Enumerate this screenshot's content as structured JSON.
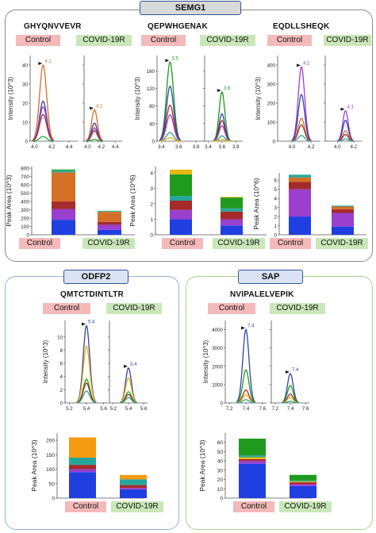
{
  "header": {
    "semg1": "SEMG1",
    "odfp2": "ODFP2",
    "sap": "SAP"
  },
  "condition_labels": {
    "control": "Control",
    "covid": "COVID-19R"
  },
  "colors": {
    "panel_semg": "#8c8c8c",
    "panel_odfp": "#8fb4da",
    "panel_sap": "#a9d18e",
    "control_bg": "#f4b9b9",
    "covid_bg": "#c9e7b8"
  },
  "chart_data": [
    {
      "id": "semg-ghy",
      "type": "line",
      "peptide": "GHYQNVVEVR",
      "ylabel": "Intensity (10^3)",
      "yticks": [
        "0",
        "10",
        "20",
        "30",
        "40"
      ],
      "ylim": [
        0,
        45
      ],
      "xticks": [
        "4.0",
        "4.2",
        "4.4"
      ],
      "xlim": [
        3.95,
        4.5
      ],
      "control": {
        "retention_time": "4.1",
        "peaks": [
          {
            "color": "#d46f28",
            "height": 40
          },
          {
            "color": "#3043a8",
            "height": 21
          },
          {
            "color": "#9b3fcf",
            "height": 18
          },
          {
            "color": "#a52a2a",
            "height": 14
          },
          {
            "color": "#2aa040",
            "height": 2.5
          }
        ]
      },
      "covid": {
        "retention_time": "4.1",
        "peaks": [
          {
            "color": "#d46f28",
            "height": 16.5
          },
          {
            "color": "#3043a8",
            "height": 9.5
          },
          {
            "color": "#9b3fcf",
            "height": 7
          },
          {
            "color": "#a52a2a",
            "height": 5.5
          },
          {
            "color": "#2aa040",
            "height": 1
          }
        ]
      }
    },
    {
      "id": "semg-qep",
      "type": "line",
      "peptide": "QEPWHGENAK",
      "ylabel": "Intensity (10^3)",
      "yticks": [
        "0",
        "40",
        "80",
        "120",
        "160"
      ],
      "ylim": [
        0,
        195
      ],
      "xticks": [
        "3.4",
        "3.6",
        "3.8"
      ],
      "xlim": [
        3.35,
        3.9
      ],
      "control": {
        "retention_time": "3.5",
        "peaks": [
          {
            "color": "#1f9a1f",
            "height": 180
          },
          {
            "color": "#3043a8",
            "height": 125
          },
          {
            "color": "#a52a2a",
            "height": 82
          },
          {
            "color": "#9b3fcf",
            "height": 60
          },
          {
            "color": "#26a69a",
            "height": 20
          },
          {
            "color": "#e8b60d",
            "height": 8
          }
        ]
      },
      "covid": {
        "retention_time": "3.6",
        "peaks": [
          {
            "color": "#1f9a1f",
            "height": 112
          },
          {
            "color": "#3043a8",
            "height": 62
          },
          {
            "color": "#a52a2a",
            "height": 47
          },
          {
            "color": "#9b3fcf",
            "height": 35
          },
          {
            "color": "#26a69a",
            "height": 12
          },
          {
            "color": "#e8b60d",
            "height": 4
          }
        ]
      }
    },
    {
      "id": "semg-eqd",
      "type": "line",
      "peptide": "EQDLLSHEQK",
      "ylabel": "Intensity (10^3)",
      "yticks": [
        "0",
        "100",
        "200",
        "300",
        "400"
      ],
      "ylim": [
        0,
        450
      ],
      "xticks": [
        "4.0",
        "4.2"
      ],
      "xlim": [
        3.85,
        4.3
      ],
      "control": {
        "retention_time": "4.1",
        "peaks": [
          {
            "color": "#9b3fcf",
            "height": 390
          },
          {
            "color": "#3043a8",
            "height": 245
          },
          {
            "color": "#d46f28",
            "height": 120
          },
          {
            "color": "#a52a2a",
            "height": 85
          },
          {
            "color": "#26a69a",
            "height": 30
          }
        ]
      },
      "covid": {
        "retention_time": "4.1",
        "peaks": [
          {
            "color": "#9b3fcf",
            "height": 160
          },
          {
            "color": "#3043a8",
            "height": 110
          },
          {
            "color": "#d46f28",
            "height": 55
          },
          {
            "color": "#a52a2a",
            "height": 35
          },
          {
            "color": "#26a69a",
            "height": 12
          }
        ]
      }
    },
    {
      "id": "odfp-qmt",
      "type": "line",
      "peptide": "QMTCTDINTLTR",
      "ylabel": "Intensity (10^3)",
      "yticks": [
        "0",
        "2",
        "4",
        "6",
        "8",
        "10"
      ],
      "ylim": [
        0,
        12.5
      ],
      "xticks": [
        "5.2",
        "5.4",
        "5.6"
      ],
      "xlim": [
        5.15,
        5.65
      ],
      "control": {
        "retention_time": "5.4",
        "peaks": [
          {
            "color": "#3043a8",
            "height": 11.7
          },
          {
            "color": "#e8b60d",
            "height": 8.6
          },
          {
            "color": "#1f9a1f",
            "height": 3.6
          },
          {
            "color": "#a52a2a",
            "height": 3.0
          },
          {
            "color": "#26a69a",
            "height": 1.8
          }
        ]
      },
      "covid": {
        "retention_time": "5.4",
        "peaks": [
          {
            "color": "#3043a8",
            "height": 5.3
          },
          {
            "color": "#e8b60d",
            "height": 3.8
          },
          {
            "color": "#1f9a1f",
            "height": 1.7
          },
          {
            "color": "#a52a2a",
            "height": 1.3
          },
          {
            "color": "#26a69a",
            "height": 0.8
          }
        ]
      }
    },
    {
      "id": "sap-nvi",
      "type": "line",
      "peptide": "NVIPALELVEPIK",
      "ylabel": "Intensity (10^3)",
      "yticks": [
        "0",
        "1000",
        "2000",
        "3000",
        "4000"
      ],
      "ylim": [
        0,
        4500
      ],
      "xticks": [
        "7.2",
        "7.4",
        "7.6"
      ],
      "xlim": [
        7.15,
        7.65
      ],
      "control": {
        "retention_time": "7.4",
        "peaks": [
          {
            "color": "#3043a8",
            "height": 4000
          },
          {
            "color": "#1f9a1f",
            "height": 1800
          },
          {
            "color": "#a52a2a",
            "height": 700
          },
          {
            "color": "#e8b60d",
            "height": 450
          },
          {
            "color": "#26a69a",
            "height": 180
          }
        ]
      },
      "covid": {
        "retention_time": "7.4",
        "peaks": [
          {
            "color": "#3043a8",
            "height": 1600
          },
          {
            "color": "#1f9a1f",
            "height": 950
          },
          {
            "color": "#a52a2a",
            "height": 480
          },
          {
            "color": "#e8b60d",
            "height": 300
          },
          {
            "color": "#26a69a",
            "height": 90
          }
        ]
      }
    },
    {
      "id": "semg-ghy-bar",
      "type": "bar",
      "ylabel": "Peak Area (10^3)",
      "yticks": [
        "0",
        "100",
        "200",
        "300",
        "400",
        "500",
        "600",
        "700",
        "800"
      ],
      "ylim": [
        0,
        820
      ],
      "categories": [
        "Control",
        "COVID-19R"
      ],
      "series": [
        {
          "color": "#1f3fe0",
          "values": [
            180,
            60
          ]
        },
        {
          "color": "#9b3fcf",
          "values": [
            130,
            60
          ]
        },
        {
          "color": "#a52a2a",
          "values": [
            90,
            35
          ]
        },
        {
          "color": "#d46f28",
          "values": [
            350,
            120
          ]
        },
        {
          "color": "#26a69a",
          "values": [
            20,
            8
          ]
        },
        {
          "color": "#2aa040",
          "values": [
            15,
            5
          ]
        }
      ]
    },
    {
      "id": "semg-qep-bar",
      "type": "bar",
      "ylabel": "Peak Area (10^6)",
      "yticks": [
        "0",
        "1",
        "2",
        "3",
        "4"
      ],
      "ylim": [
        0,
        4.4
      ],
      "categories": [
        "Control",
        "COVID-19R"
      ],
      "series": [
        {
          "color": "#1f3fe0",
          "values": [
            1.0,
            0.6
          ]
        },
        {
          "color": "#9b3fcf",
          "values": [
            0.6,
            0.4
          ]
        },
        {
          "color": "#a52a2a",
          "values": [
            0.6,
            0.5
          ]
        },
        {
          "color": "#26a69a",
          "values": [
            0.3,
            0.2
          ]
        },
        {
          "color": "#1f9a1f",
          "values": [
            1.4,
            0.7
          ]
        },
        {
          "color": "#e8b60d",
          "values": [
            0.3,
            0.05
          ]
        }
      ]
    },
    {
      "id": "semg-eqd-bar",
      "type": "bar",
      "ylabel": "Peak Area (10^6)",
      "yticks": [
        "0",
        "1",
        "2",
        "3",
        "4",
        "5",
        "6"
      ],
      "ylim": [
        0,
        6.8
      ],
      "categories": [
        "Control",
        "COVID-19R"
      ],
      "series": [
        {
          "color": "#1f3fe0",
          "values": [
            2.0,
            0.9
          ]
        },
        {
          "color": "#9b3fcf",
          "values": [
            3.0,
            1.5
          ]
        },
        {
          "color": "#a52a2a",
          "values": [
            0.8,
            0.4
          ]
        },
        {
          "color": "#d46f28",
          "values": [
            0.5,
            0.3
          ]
        },
        {
          "color": "#26a69a",
          "values": [
            0.3,
            0.1
          ]
        }
      ]
    },
    {
      "id": "odfp-qmt-bar",
      "type": "bar",
      "ylabel": "Peak Area (10^3)",
      "yticks": [
        "0",
        "50",
        "100",
        "150",
        "200"
      ],
      "ylim": [
        0,
        225
      ],
      "categories": [
        "Control",
        "COVID-19R"
      ],
      "series": [
        {
          "color": "#1f3fe0",
          "values": [
            90,
            30
          ]
        },
        {
          "color": "#9b3fcf",
          "values": [
            10,
            5
          ]
        },
        {
          "color": "#a52a2a",
          "values": [
            15,
            10
          ]
        },
        {
          "color": "#26a69a",
          "values": [
            25,
            20
          ]
        },
        {
          "color": "#f49a12",
          "values": [
            70,
            15
          ]
        }
      ]
    },
    {
      "id": "sap-nvi-bar",
      "type": "bar",
      "ylabel": "Peak Area (10^3)",
      "yticks": [
        "0",
        "10",
        "20",
        "30",
        "40",
        "50",
        "60"
      ],
      "ylim": [
        0,
        70
      ],
      "categories": [
        "Control",
        "COVID-19R"
      ],
      "series": [
        {
          "color": "#1f3fe0",
          "values": [
            37,
            13
          ]
        },
        {
          "color": "#9b3fcf",
          "values": [
            3,
            2
          ]
        },
        {
          "color": "#a52a2a",
          "values": [
            2,
            2
          ]
        },
        {
          "color": "#e8b60d",
          "values": [
            2,
            1
          ]
        },
        {
          "color": "#26a69a",
          "values": [
            2,
            1
          ]
        },
        {
          "color": "#1f9a1f",
          "values": [
            18,
            6
          ]
        }
      ]
    }
  ]
}
